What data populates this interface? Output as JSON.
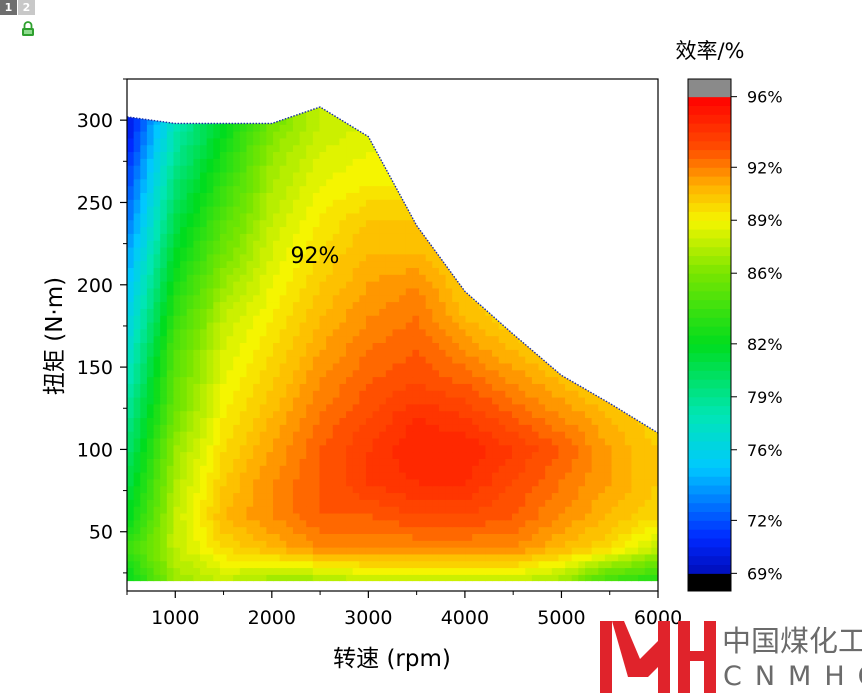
{
  "window": {
    "tabs": [
      "1",
      "2"
    ]
  },
  "colors": {
    "lock": "#2fa02f",
    "logo_red": "#e0232b",
    "logo_gray": "#6b6b6b"
  },
  "chart_data": {
    "type": "contour",
    "xlabel": "转速 (rpm)",
    "ylabel": "扭矩 (N·m)",
    "xlim": [
      500,
      6000
    ],
    "ylim": [
      14,
      325
    ],
    "xticks": [
      1000,
      2000,
      3000,
      4000,
      5000,
      6000
    ],
    "yticks": [
      50,
      100,
      150,
      200,
      250,
      300
    ],
    "colorbar": {
      "title": "效率/%",
      "range": [
        68,
        97
      ],
      "tick_values": [
        69,
        72,
        76,
        79,
        82,
        86,
        89,
        92,
        96
      ],
      "tick_labels": [
        "69%",
        "72%",
        "76%",
        "79%",
        "82%",
        "86%",
        "89%",
        "92%",
        "96%"
      ]
    },
    "annotation": "92%",
    "max_torque_envelope": {
      "rpm": [
        500,
        1000,
        1500,
        2000,
        2500,
        3000,
        3500,
        4000,
        4500,
        5000,
        5500,
        6000
      ],
      "torque": [
        302,
        298,
        298,
        298,
        308,
        290,
        236,
        196,
        170,
        145,
        128,
        110
      ]
    },
    "efficiency_grid": {
      "rpm": [
        500,
        1000,
        1500,
        2000,
        2500,
        3000,
        3500,
        4000,
        4500,
        5000,
        5500,
        6000
      ],
      "torque": [
        20,
        40,
        60,
        80,
        100,
        120,
        140,
        160,
        180,
        200,
        220,
        240,
        260,
        280,
        300
      ],
      "values": [
        [
          82,
          87,
          88,
          87,
          87,
          88,
          88,
          88,
          88,
          87,
          84,
          83
        ],
        [
          84,
          88,
          90,
          91,
          92,
          92,
          92,
          92,
          92,
          91,
          90,
          88
        ],
        [
          82,
          88,
          91,
          92,
          93,
          93,
          93.5,
          93.5,
          93,
          92,
          91,
          90
        ],
        [
          81,
          87.5,
          90.5,
          92,
          93,
          94,
          94.5,
          94.5,
          93.5,
          92.5,
          91.5,
          90.5
        ],
        [
          80,
          87,
          90,
          91.5,
          93,
          94,
          95,
          95,
          94,
          93,
          91.5,
          90.5
        ],
        [
          79,
          86,
          89.5,
          91,
          92.5,
          93.5,
          94.5,
          94,
          93,
          92,
          91,
          90
        ],
        [
          78,
          85.5,
          89,
          90.5,
          92,
          93,
          93.5,
          93,
          92,
          91,
          90,
          89
        ],
        [
          77,
          85,
          88.5,
          90,
          91.5,
          92.5,
          93,
          92,
          91,
          90,
          89,
          88
        ],
        [
          76,
          84,
          88,
          89.5,
          91,
          92,
          92.5,
          91,
          90,
          89,
          88,
          87
        ],
        [
          75,
          83,
          87,
          89,
          90.5,
          91.5,
          92,
          90.5,
          89.5,
          88,
          87,
          86
        ],
        [
          74,
          82,
          86,
          88.5,
          90,
          91,
          91,
          90,
          89,
          87,
          86,
          85
        ],
        [
          73,
          81,
          85,
          88,
          89.5,
          90.5,
          90.5,
          89.5,
          88,
          87,
          86,
          85
        ],
        [
          72,
          80,
          84,
          87.5,
          89,
          89.5,
          89.5,
          89,
          88,
          87,
          86,
          85
        ],
        [
          71,
          79,
          83,
          87,
          88.5,
          89,
          89,
          88.5,
          88,
          87,
          86,
          85
        ],
        [
          70,
          78,
          82,
          86,
          88,
          88.5,
          88.5,
          88,
          87,
          86,
          85,
          84
        ]
      ]
    }
  },
  "logo": {
    "name_cn": "中国煤化工",
    "name_en": "CNMHG"
  }
}
